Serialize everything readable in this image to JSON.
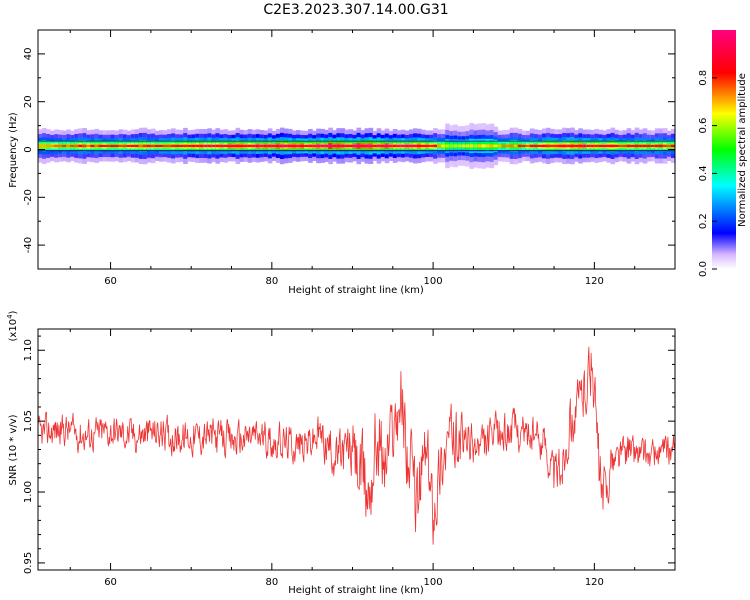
{
  "title": "C2E3.2023.307.14.00.G31",
  "chart_data": [
    {
      "type": "heatmap",
      "xlabel": "Height of straight line (km)",
      "ylabel": "Frequency (Hz)",
      "xlim": [
        51,
        130
      ],
      "ylim": [
        -50,
        50
      ],
      "x_ticks": [
        60,
        80,
        100,
        120
      ],
      "y_ticks": [
        -40,
        -20,
        0,
        20,
        40
      ],
      "band_center_hz": 1.5,
      "ridge_amplitude": [
        {
          "x": 52,
          "a": 0.75
        },
        {
          "x": 56,
          "a": 0.8
        },
        {
          "x": 60,
          "a": 0.82
        },
        {
          "x": 64,
          "a": 0.8
        },
        {
          "x": 68,
          "a": 0.85
        },
        {
          "x": 72,
          "a": 0.9
        },
        {
          "x": 76,
          "a": 0.92
        },
        {
          "x": 80,
          "a": 0.95
        },
        {
          "x": 84,
          "a": 0.97
        },
        {
          "x": 88,
          "a": 0.98
        },
        {
          "x": 92,
          "a": 0.97
        },
        {
          "x": 96,
          "a": 0.95
        },
        {
          "x": 99,
          "a": 0.9
        },
        {
          "x": 102,
          "a": 0.6
        },
        {
          "x": 106,
          "a": 0.65
        },
        {
          "x": 110,
          "a": 0.75
        },
        {
          "x": 114,
          "a": 0.85
        },
        {
          "x": 118,
          "a": 0.9
        },
        {
          "x": 122,
          "a": 0.85
        },
        {
          "x": 126,
          "a": 0.8
        },
        {
          "x": 130,
          "a": 0.8
        }
      ],
      "colorbar": {
        "label": "Normalized spectral amplitude",
        "ticks": [
          "0.0",
          "0.2",
          "0.4",
          "0.6",
          "0.8"
        ],
        "range": [
          0,
          1
        ]
      }
    },
    {
      "type": "line",
      "xlabel": "Height of straight line (km)",
      "ylabel": "SNR (10 * v/v)",
      "y_multiplier": "(x10",
      "y_multiplier_exp": "4",
      "y_multiplier_close": ")",
      "xlim": [
        51,
        130
      ],
      "ylim": [
        0.945,
        1.115
      ],
      "x_ticks": [
        60,
        80,
        100,
        120
      ],
      "y_ticks": [
        "0.95",
        "1.00",
        "1.05",
        "1.10"
      ],
      "series": [
        {
          "color": "#ee3333",
          "points": [
            [
              51,
              1.04
            ],
            [
              54,
              1.045
            ],
            [
              57,
              1.04
            ],
            [
              60,
              1.043
            ],
            [
              63,
              1.04
            ],
            [
              66,
              1.042
            ],
            [
              69,
              1.038
            ],
            [
              72,
              1.04
            ],
            [
              75,
              1.036
            ],
            [
              78,
              1.04
            ],
            [
              81,
              1.035
            ],
            [
              84,
              1.033
            ],
            [
              86,
              1.04
            ],
            [
              88,
              1.025
            ],
            [
              90,
              1.03
            ],
            [
              91,
              1.01
            ],
            [
              92,
              1.0
            ],
            [
              93,
              1.04
            ],
            [
              94,
              1.02
            ],
            [
              95,
              1.045
            ],
            [
              96,
              1.07
            ],
            [
              97,
              1.02
            ],
            [
              98,
              0.99
            ],
            [
              99,
              1.03
            ],
            [
              100,
              0.99
            ],
            [
              101,
              1.02
            ],
            [
              102,
              1.04
            ],
            [
              104,
              1.035
            ],
            [
              106,
              1.03
            ],
            [
              108,
              1.04
            ],
            [
              110,
              1.045
            ],
            [
              112,
              1.04
            ],
            [
              114,
              1.035
            ],
            [
              115,
              1.01
            ],
            [
              116,
              1.02
            ],
            [
              117,
              1.05
            ],
            [
              118,
              1.06
            ],
            [
              119,
              1.08
            ],
            [
              119.8,
              1.09
            ],
            [
              120.5,
              1.02
            ],
            [
              121,
              0.99
            ],
            [
              121.5,
              1.0
            ],
            [
              122,
              1.02
            ],
            [
              124,
              1.03
            ],
            [
              127,
              1.025
            ],
            [
              130,
              1.03
            ]
          ],
          "noise_amplitude": [
            [
              51,
              0.018
            ],
            [
              85,
              0.02
            ],
            [
              89,
              0.028
            ],
            [
              92,
              0.05
            ],
            [
              95,
              0.04
            ],
            [
              97,
              0.045
            ],
            [
              100,
              0.04
            ],
            [
              104,
              0.025
            ],
            [
              112,
              0.02
            ],
            [
              118,
              0.03
            ],
            [
              121,
              0.04
            ],
            [
              122,
              0.02
            ],
            [
              130,
              0.016
            ]
          ]
        }
      ]
    }
  ]
}
